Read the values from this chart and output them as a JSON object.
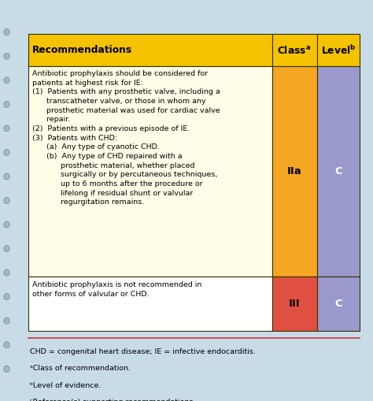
{
  "header": {
    "rec_text": "Recommendations",
    "class_text": "Class",
    "class_super": "a",
    "level_text": "Level",
    "level_super": "b",
    "bg_color": "#F5C200",
    "text_color": "#000000",
    "font_weight": "bold"
  },
  "rows": [
    {
      "class_val": "IIa",
      "level_val": "C",
      "class_bg": "#F5A623",
      "level_bg": "#9999CC",
      "rec_bg": "#FFFDE7"
    },
    {
      "class_val": "III",
      "level_val": "C",
      "class_bg": "#E05040",
      "level_bg": "#9999CC",
      "rec_bg": "#FFFFFF"
    }
  ],
  "rec1_lines": [
    "Antibiotic prophylaxis should be considered for",
    "patients at highest risk for IE:",
    "(1)  Patients with any prosthetic valve, including a",
    "      transcatheter valve, or those in whom any",
    "      prosthetic material was used for cardiac valve",
    "      repair.",
    "(2)  Patients with a previous episode of IE.",
    "(3)  Patients with CHD:",
    "      (a)  Any type of cyanotic CHD.",
    "      (b)  Any type of CHD repaired with a",
    "            prosthetic material, whether placed",
    "            surgically or by percutaneous techniques,",
    "            up to 6 months after the procedure or",
    "            lifelong if residual shunt or valvular",
    "            regurgitation remains."
  ],
  "rec2_lines": [
    "Antibiotic prophylaxis is not recommended in",
    "other forms of valvular or CHD."
  ],
  "footnotes": [
    "CHD = congenital heart disease; IE = infective endocarditis.",
    "ᵃClass of recommendation.",
    "ᵇLevel of evidence.",
    "ᶜReference(s) supporting recommendations."
  ],
  "fig_bg": "#C8DCE8",
  "table_border_color": "#333300",
  "red_line_color": "#CC3344"
}
